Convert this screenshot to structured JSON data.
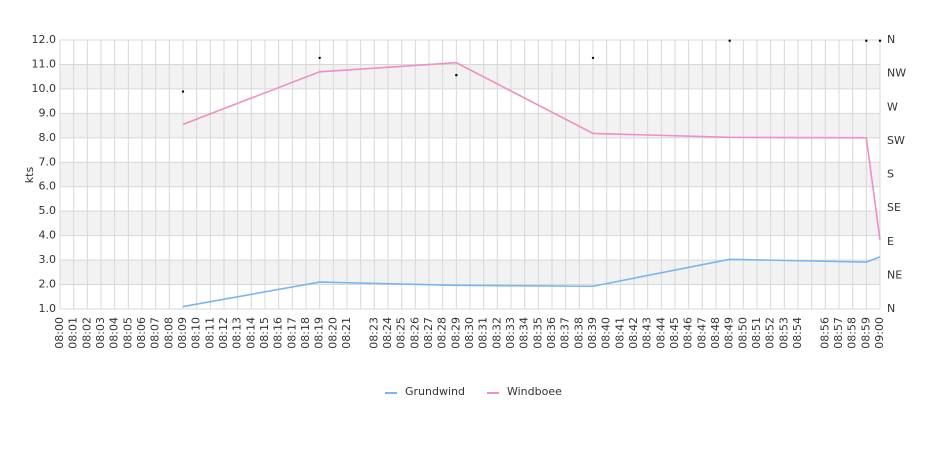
{
  "chart_data": {
    "type": "line",
    "y_label": "kts",
    "categories": [
      "08:00",
      "08:01",
      "08:02",
      "08:03",
      "08:04",
      "08:05",
      "08:06",
      "08:07",
      "08:08",
      "08:09",
      "08:10",
      "08:11",
      "08:12",
      "08:13",
      "08:14",
      "08:15",
      "08:16",
      "08:17",
      "08:18",
      "08:19",
      "08:20",
      "08:21",
      null,
      "08:23",
      "08:24",
      "08:25",
      "08:26",
      "08:27",
      "08:28",
      "08:29",
      "08:30",
      "08:31",
      "08:32",
      "08:33",
      "08:34",
      "08:35",
      "08:36",
      "08:37",
      "08:38",
      "08:39",
      "08:40",
      "08:41",
      "08:42",
      "08:43",
      "08:44",
      "08:45",
      "08:46",
      "08:47",
      "08:48",
      "08:49",
      "08:50",
      "08:51",
      "08:52",
      "08:53",
      "08:54",
      null,
      "08:56",
      "08:57",
      "08:58",
      "08:59",
      "09:00"
    ],
    "ylim": [
      1,
      12
    ],
    "yticks": [
      {
        "value": 1,
        "label": "1.0"
      },
      {
        "value": 2,
        "label": "2.0"
      },
      {
        "value": 3,
        "label": "3.0"
      },
      {
        "value": 4,
        "label": "4.0"
      },
      {
        "value": 5,
        "label": "5.0"
      },
      {
        "value": 6,
        "label": "6.0"
      },
      {
        "value": 7,
        "label": "7.0"
      },
      {
        "value": 8,
        "label": "8.0"
      },
      {
        "value": 9,
        "label": "9.0"
      },
      {
        "value": 10,
        "label": "10.0"
      },
      {
        "value": 11,
        "label": "11.0"
      },
      {
        "value": 12,
        "label": "12.0"
      }
    ],
    "y2lim": [
      0,
      360
    ],
    "y2ticks": [
      {
        "value": 0,
        "label": "N"
      },
      {
        "value": 45,
        "label": "NE"
      },
      {
        "value": 90,
        "label": "E"
      },
      {
        "value": 135,
        "label": "SE"
      },
      {
        "value": 180,
        "label": "S"
      },
      {
        "value": 225,
        "label": "SW"
      },
      {
        "value": 270,
        "label": "W"
      },
      {
        "value": 315,
        "label": "NW"
      },
      {
        "value": 360,
        "label": "N"
      }
    ],
    "grid": true,
    "alternate_bands": true,
    "legend": "bottom",
    "series": [
      {
        "name": "Grundwind",
        "color": "#7cb5ec",
        "x": [
          "08:09",
          "08:19",
          "08:29",
          "08:39",
          "08:49",
          "08:59",
          "09:00"
        ],
        "values": [
          1.1,
          2.1,
          1.97,
          1.93,
          3.03,
          2.92,
          3.13
        ]
      },
      {
        "name": "Windboee",
        "color": "#f08fc3",
        "x": [
          "08:09",
          "08:19",
          "08:29",
          "08:39",
          "08:49",
          "08:59",
          "09:00"
        ],
        "values": [
          8.55,
          10.7,
          11.07,
          8.18,
          8.02,
          8.0,
          3.82
        ]
      },
      {
        "type": "scatter",
        "axis": "y2",
        "color": "#000000",
        "x": [
          "08:09",
          "08:19",
          "08:29",
          "08:39",
          "08:49",
          "08:59",
          "09:00"
        ],
        "values": [
          291,
          336,
          313,
          336,
          359,
          359,
          359
        ]
      }
    ]
  }
}
